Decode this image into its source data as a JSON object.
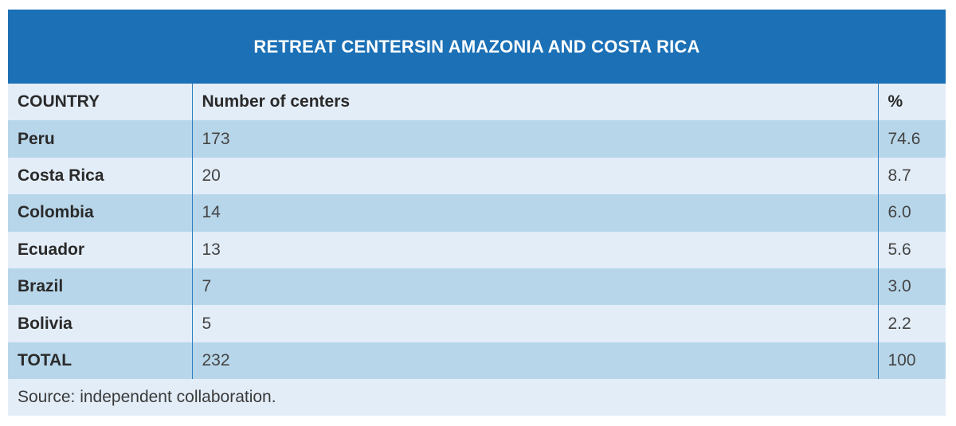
{
  "title": "RETREAT CENTERSIN AMAZONIA AND COSTA RICA",
  "headers": {
    "country": "COUNTRY",
    "centers": "Number of centers",
    "percent": "%"
  },
  "rows": [
    {
      "country": "Peru",
      "centers": "173",
      "percent": "74.6"
    },
    {
      "country": "Costa Rica",
      "centers": "20",
      "percent": "8.7"
    },
    {
      "country": "Colombia",
      "centers": "14",
      "percent": "6.0"
    },
    {
      "country": "Ecuador",
      "centers": "13",
      "percent": "5.6"
    },
    {
      "country": "Brazil",
      "centers": "7",
      "percent": "3.0"
    },
    {
      "country": "Bolivia",
      "centers": "5",
      "percent": "2.2"
    },
    {
      "country": "TOTAL",
      "centers": "232",
      "percent": "100"
    }
  ],
  "source": "Source: independent collaboration.",
  "colors": {
    "title_bg": "#1b70b6",
    "row_light": "#e3edf8",
    "row_dark": "#b8d6ea",
    "divider": "#2c7fc0"
  }
}
